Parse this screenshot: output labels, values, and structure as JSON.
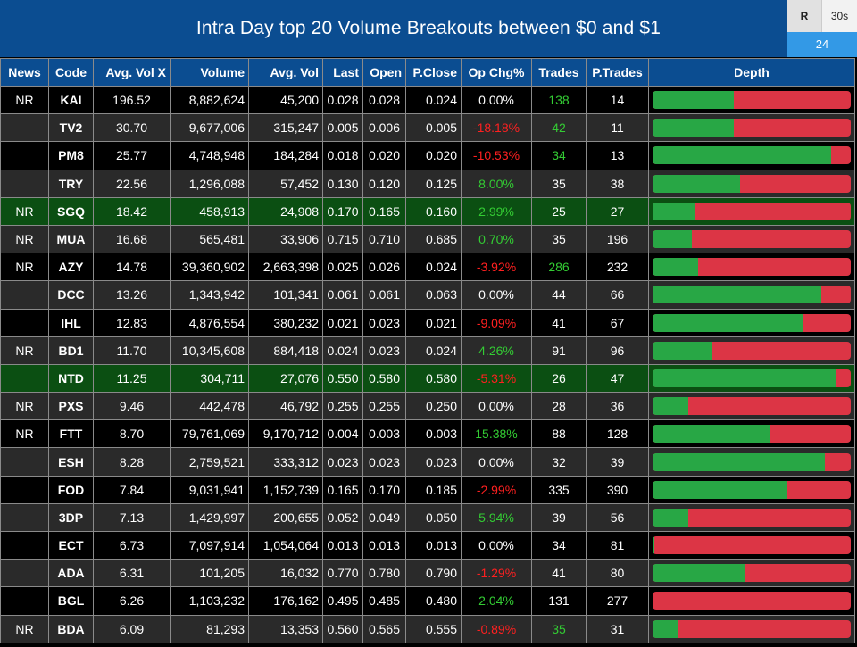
{
  "header": {
    "title": "Intra Day top 20 Volume Breakouts between $0 and $1",
    "refresh_label": "R",
    "interval_label": "30s",
    "count": "24"
  },
  "colors": {
    "header_bg": "#0b4d91",
    "buy": "#28a745",
    "sell": "#dc3545",
    "positive": "#33cc33",
    "negative": "#ff2020",
    "highlight_row": "#0b4f12"
  },
  "columns": [
    "News",
    "Code",
    "Avg. Vol X",
    "Volume",
    "Avg. Vol",
    "Last",
    "Open",
    "P.Close",
    "Op Chg%",
    "Trades",
    "P.Trades",
    "Depth"
  ],
  "rows": [
    {
      "news": "NR",
      "code": "KAI",
      "avgx": "196.52",
      "volume": "8,882,624",
      "avgvol": "45,200",
      "last": "0.028",
      "open": "0.028",
      "pclose": "0.024",
      "opchg": "0.00%",
      "chg_dir": "neu",
      "trades": "138",
      "trades_dir": "pos",
      "ptrades": "14",
      "depth_buy": 0.41,
      "highlight": false
    },
    {
      "news": "",
      "code": "TV2",
      "avgx": "30.70",
      "volume": "9,677,006",
      "avgvol": "315,247",
      "last": "0.005",
      "open": "0.006",
      "pclose": "0.005",
      "opchg": "-18.18%",
      "chg_dir": "neg",
      "trades": "42",
      "trades_dir": "pos",
      "ptrades": "11",
      "depth_buy": 0.41,
      "highlight": false
    },
    {
      "news": "",
      "code": "PM8",
      "avgx": "25.77",
      "volume": "4,748,948",
      "avgvol": "184,284",
      "last": "0.018",
      "open": "0.020",
      "pclose": "0.020",
      "opchg": "-10.53%",
      "chg_dir": "neg",
      "trades": "34",
      "trades_dir": "pos",
      "ptrades": "13",
      "depth_buy": 0.9,
      "highlight": false
    },
    {
      "news": "",
      "code": "TRY",
      "avgx": "22.56",
      "volume": "1,296,088",
      "avgvol": "57,452",
      "last": "0.130",
      "open": "0.120",
      "pclose": "0.125",
      "opchg": "8.00%",
      "chg_dir": "pos",
      "trades": "35",
      "trades_dir": "neu",
      "ptrades": "38",
      "depth_buy": 0.44,
      "highlight": false
    },
    {
      "news": "NR",
      "code": "SGQ",
      "avgx": "18.42",
      "volume": "458,913",
      "avgvol": "24,908",
      "last": "0.170",
      "open": "0.165",
      "pclose": "0.160",
      "opchg": "2.99%",
      "chg_dir": "pos",
      "trades": "25",
      "trades_dir": "neu",
      "ptrades": "27",
      "depth_buy": 0.21,
      "highlight": true
    },
    {
      "news": "NR",
      "code": "MUA",
      "avgx": "16.68",
      "volume": "565,481",
      "avgvol": "33,906",
      "last": "0.715",
      "open": "0.710",
      "pclose": "0.685",
      "opchg": "0.70%",
      "chg_dir": "pos",
      "trades": "35",
      "trades_dir": "neu",
      "ptrades": "196",
      "depth_buy": 0.2,
      "highlight": false
    },
    {
      "news": "NR",
      "code": "AZY",
      "avgx": "14.78",
      "volume": "39,360,902",
      "avgvol": "2,663,398",
      "last": "0.025",
      "open": "0.026",
      "pclose": "0.024",
      "opchg": "-3.92%",
      "chg_dir": "neg",
      "trades": "286",
      "trades_dir": "pos",
      "ptrades": "232",
      "depth_buy": 0.23,
      "highlight": false
    },
    {
      "news": "",
      "code": "DCC",
      "avgx": "13.26",
      "volume": "1,343,942",
      "avgvol": "101,341",
      "last": "0.061",
      "open": "0.061",
      "pclose": "0.063",
      "opchg": "0.00%",
      "chg_dir": "neu",
      "trades": "44",
      "trades_dir": "neu",
      "ptrades": "66",
      "depth_buy": 0.85,
      "highlight": false
    },
    {
      "news": "",
      "code": "IHL",
      "avgx": "12.83",
      "volume": "4,876,554",
      "avgvol": "380,232",
      "last": "0.021",
      "open": "0.023",
      "pclose": "0.021",
      "opchg": "-9.09%",
      "chg_dir": "neg",
      "trades": "41",
      "trades_dir": "neu",
      "ptrades": "67",
      "depth_buy": 0.76,
      "highlight": false
    },
    {
      "news": "NR",
      "code": "BD1",
      "avgx": "11.70",
      "volume": "10,345,608",
      "avgvol": "884,418",
      "last": "0.024",
      "open": "0.023",
      "pclose": "0.024",
      "opchg": "4.26%",
      "chg_dir": "pos",
      "trades": "91",
      "trades_dir": "neu",
      "ptrades": "96",
      "depth_buy": 0.3,
      "highlight": false
    },
    {
      "news": "",
      "code": "NTD",
      "avgx": "11.25",
      "volume": "304,711",
      "avgvol": "27,076",
      "last": "0.550",
      "open": "0.580",
      "pclose": "0.580",
      "opchg": "-5.31%",
      "chg_dir": "neg",
      "trades": "26",
      "trades_dir": "neu",
      "ptrades": "47",
      "depth_buy": 0.93,
      "highlight": true
    },
    {
      "news": "NR",
      "code": "PXS",
      "avgx": "9.46",
      "volume": "442,478",
      "avgvol": "46,792",
      "last": "0.255",
      "open": "0.255",
      "pclose": "0.250",
      "opchg": "0.00%",
      "chg_dir": "neu",
      "trades": "28",
      "trades_dir": "neu",
      "ptrades": "36",
      "depth_buy": 0.18,
      "highlight": false
    },
    {
      "news": "NR",
      "code": "FTT",
      "avgx": "8.70",
      "volume": "79,761,069",
      "avgvol": "9,170,712",
      "last": "0.004",
      "open": "0.003",
      "pclose": "0.003",
      "opchg": "15.38%",
      "chg_dir": "pos",
      "trades": "88",
      "trades_dir": "neu",
      "ptrades": "128",
      "depth_buy": 0.59,
      "highlight": false
    },
    {
      "news": "",
      "code": "ESH",
      "avgx": "8.28",
      "volume": "2,759,521",
      "avgvol": "333,312",
      "last": "0.023",
      "open": "0.023",
      "pclose": "0.023",
      "opchg": "0.00%",
      "chg_dir": "neu",
      "trades": "32",
      "trades_dir": "neu",
      "ptrades": "39",
      "depth_buy": 0.87,
      "highlight": false
    },
    {
      "news": "",
      "code": "FOD",
      "avgx": "7.84",
      "volume": "9,031,941",
      "avgvol": "1,152,739",
      "last": "0.165",
      "open": "0.170",
      "pclose": "0.185",
      "opchg": "-2.99%",
      "chg_dir": "neg",
      "trades": "335",
      "trades_dir": "neu",
      "ptrades": "390",
      "depth_buy": 0.68,
      "highlight": false
    },
    {
      "news": "",
      "code": "3DP",
      "avgx": "7.13",
      "volume": "1,429,997",
      "avgvol": "200,655",
      "last": "0.052",
      "open": "0.049",
      "pclose": "0.050",
      "opchg": "5.94%",
      "chg_dir": "pos",
      "trades": "39",
      "trades_dir": "neu",
      "ptrades": "56",
      "depth_buy": 0.18,
      "highlight": false
    },
    {
      "news": "",
      "code": "ECT",
      "avgx": "6.73",
      "volume": "7,097,914",
      "avgvol": "1,054,064",
      "last": "0.013",
      "open": "0.013",
      "pclose": "0.013",
      "opchg": "0.00%",
      "chg_dir": "neu",
      "trades": "34",
      "trades_dir": "neu",
      "ptrades": "81",
      "depth_buy": 0.01,
      "highlight": false
    },
    {
      "news": "",
      "code": "ADA",
      "avgx": "6.31",
      "volume": "101,205",
      "avgvol": "16,032",
      "last": "0.770",
      "open": "0.780",
      "pclose": "0.790",
      "opchg": "-1.29%",
      "chg_dir": "neg",
      "trades": "41",
      "trades_dir": "neu",
      "ptrades": "80",
      "depth_buy": 0.47,
      "highlight": false
    },
    {
      "news": "",
      "code": "BGL",
      "avgx": "6.26",
      "volume": "1,103,232",
      "avgvol": "176,162",
      "last": "0.495",
      "open": "0.485",
      "pclose": "0.480",
      "opchg": "2.04%",
      "chg_dir": "pos",
      "trades": "131",
      "trades_dir": "neu",
      "ptrades": "277",
      "depth_buy": 0.0,
      "highlight": false
    },
    {
      "news": "NR",
      "code": "BDA",
      "avgx": "6.09",
      "volume": "81,293",
      "avgvol": "13,353",
      "last": "0.560",
      "open": "0.565",
      "pclose": "0.555",
      "opchg": "-0.89%",
      "chg_dir": "neg",
      "trades": "35",
      "trades_dir": "pos",
      "ptrades": "31",
      "depth_buy": 0.13,
      "highlight": false
    }
  ]
}
